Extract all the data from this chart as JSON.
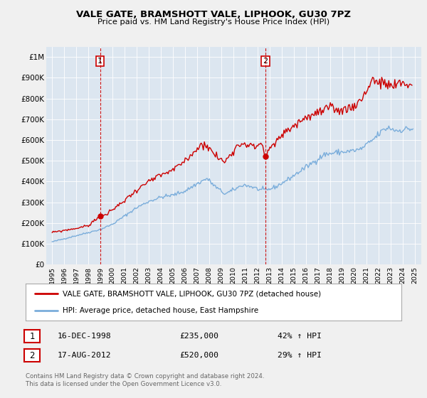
{
  "title": "VALE GATE, BRAMSHOTT VALE, LIPHOOK, GU30 7PZ",
  "subtitle": "Price paid vs. HM Land Registry's House Price Index (HPI)",
  "legend_entry1": "VALE GATE, BRAMSHOTT VALE, LIPHOOK, GU30 7PZ (detached house)",
  "legend_entry2": "HPI: Average price, detached house, East Hampshire",
  "annotation1_label": "1",
  "annotation1_date": "16-DEC-1998",
  "annotation1_price": "£235,000",
  "annotation1_hpi": "42% ↑ HPI",
  "annotation2_label": "2",
  "annotation2_date": "17-AUG-2012",
  "annotation2_price": "£520,000",
  "annotation2_hpi": "29% ↑ HPI",
  "footer": "Contains HM Land Registry data © Crown copyright and database right 2024.\nThis data is licensed under the Open Government Licence v3.0.",
  "sale1_year": 1998.96,
  "sale1_value": 235000,
  "sale2_year": 2012.63,
  "sale2_value": 520000,
  "vline1_year": 1998.96,
  "vline2_year": 2012.63,
  "red_color": "#cc0000",
  "blue_color": "#7aaddb",
  "background_color": "#f0f0f0",
  "plot_bg_color": "#dce6f0",
  "ylim_max": 1050000,
  "xlim_min": 1994.5,
  "xlim_max": 2025.5,
  "yticks": [
    0,
    100000,
    200000,
    300000,
    400000,
    500000,
    600000,
    700000,
    800000,
    900000,
    1000000
  ],
  "ylabels": [
    "£0",
    "£100K",
    "£200K",
    "£300K",
    "£400K",
    "£500K",
    "£600K",
    "£700K",
    "£800K",
    "£900K",
    "£1M"
  ],
  "hpi_anchors": {
    "1995.0": 110000,
    "1997.0": 140000,
    "1998.0": 155000,
    "1999.0": 170000,
    "2000.0": 195000,
    "2001.0": 235000,
    "2002.0": 275000,
    "2003.0": 305000,
    "2004.0": 325000,
    "2005.0": 335000,
    "2006.0": 355000,
    "2007.0": 390000,
    "2007.8": 415000,
    "2008.5": 375000,
    "2009.3": 340000,
    "2010.0": 360000,
    "2010.8": 385000,
    "2011.5": 375000,
    "2012.2": 360000,
    "2012.8": 360000,
    "2013.5": 375000,
    "2014.5": 410000,
    "2015.5": 450000,
    "2016.5": 490000,
    "2017.5": 530000,
    "2018.5": 540000,
    "2019.5": 545000,
    "2020.5": 555000,
    "2021.5": 600000,
    "2022.3": 645000,
    "2022.8": 660000,
    "2023.5": 645000,
    "2024.5": 655000,
    "2024.9": 650000
  },
  "red_anchors": {
    "1995.0": 155000,
    "1996.0": 165000,
    "1997.0": 175000,
    "1998.0": 188000,
    "1998.96": 235000,
    "1999.5": 240000,
    "2000.0": 265000,
    "2001.0": 310000,
    "2002.0": 360000,
    "2003.0": 400000,
    "2004.0": 430000,
    "2005.0": 455000,
    "2006.0": 500000,
    "2007.0": 560000,
    "2007.6": 585000,
    "2008.2": 545000,
    "2008.8": 510000,
    "2009.3": 495000,
    "2009.8": 540000,
    "2010.3": 570000,
    "2010.8": 590000,
    "2011.3": 575000,
    "2011.8": 565000,
    "2012.3": 590000,
    "2012.63": 520000,
    "2013.0": 555000,
    "2013.8": 610000,
    "2014.5": 650000,
    "2015.5": 690000,
    "2016.0": 710000,
    "2017.0": 730000,
    "2017.8": 750000,
    "2018.5": 745000,
    "2019.0": 745000,
    "2019.8": 760000,
    "2020.5": 790000,
    "2021.0": 840000,
    "2021.5": 895000,
    "2022.0": 875000,
    "2022.8": 865000,
    "2023.3": 855000,
    "2023.8": 875000,
    "2024.3": 870000,
    "2024.8": 855000
  }
}
